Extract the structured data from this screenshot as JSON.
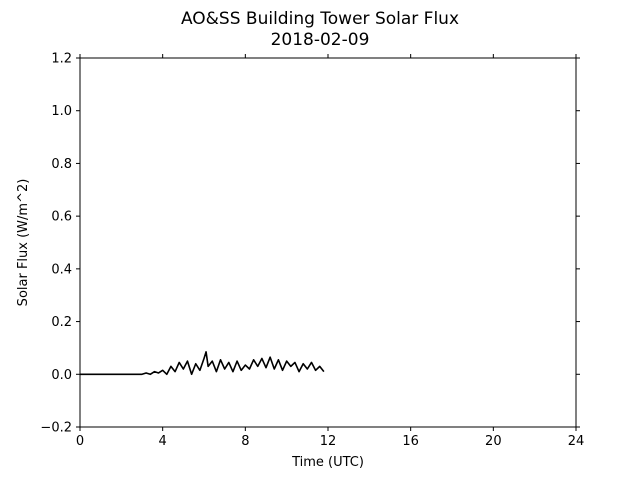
{
  "chart_data": {
    "type": "line",
    "title": "AO&SS Building Tower Solar Flux",
    "subtitle": "2018-02-09",
    "xlabel": "Time (UTC)",
    "ylabel": "Solar Flux (W/m^2)",
    "xlim": [
      0,
      24
    ],
    "ylim": [
      -0.2,
      1.2
    ],
    "xticks": [
      0,
      4,
      8,
      12,
      16,
      20,
      24
    ],
    "yticks": [
      -0.2,
      0.0,
      0.2,
      0.4,
      0.6,
      0.8,
      1.0,
      1.2
    ],
    "xtick_labels": [
      "0",
      "4",
      "8",
      "12",
      "16",
      "20",
      "24"
    ],
    "ytick_labels": [
      "−0.2",
      "0.0",
      "0.2",
      "0.4",
      "0.6",
      "0.8",
      "1.0",
      "1.2"
    ],
    "grid": false,
    "line_color": "#000000",
    "series": [
      {
        "x": [
          0.0,
          1.0,
          2.0,
          3.0,
          3.2,
          3.4,
          3.6,
          3.8,
          4.0,
          4.2,
          4.4,
          4.6,
          4.8,
          5.0,
          5.2,
          5.4,
          5.6,
          5.8,
          6.0,
          6.1,
          6.2,
          6.4,
          6.6,
          6.8,
          7.0,
          7.2,
          7.4,
          7.6,
          7.8,
          8.0,
          8.2,
          8.4,
          8.6,
          8.8,
          9.0,
          9.2,
          9.4,
          9.6,
          9.8,
          10.0,
          10.2,
          10.4,
          10.6,
          10.8,
          11.0,
          11.2,
          11.4,
          11.6,
          11.8
        ],
        "y": [
          0.0,
          0.0,
          0.0,
          0.0,
          0.005,
          0.0,
          0.01,
          0.005,
          0.015,
          0.0,
          0.03,
          0.01,
          0.045,
          0.02,
          0.05,
          0.0,
          0.04,
          0.015,
          0.06,
          0.085,
          0.03,
          0.05,
          0.01,
          0.055,
          0.02,
          0.045,
          0.01,
          0.05,
          0.015,
          0.035,
          0.02,
          0.055,
          0.03,
          0.06,
          0.025,
          0.065,
          0.02,
          0.055,
          0.015,
          0.05,
          0.03,
          0.045,
          0.01,
          0.04,
          0.02,
          0.045,
          0.015,
          0.03,
          0.01
        ]
      }
    ]
  }
}
